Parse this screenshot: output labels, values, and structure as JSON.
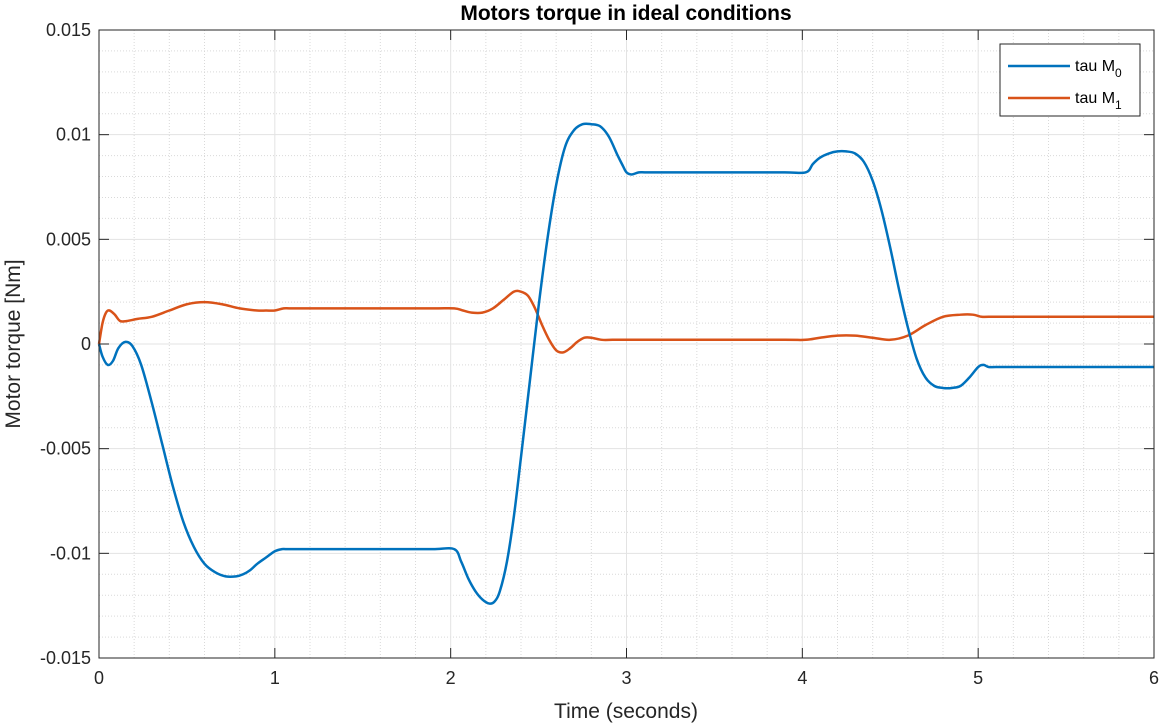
{
  "chart_data": {
    "type": "line",
    "title": "Motors torque in ideal conditions",
    "xlabel": "Time (seconds)",
    "ylabel": "Motor torque [Nm]",
    "xlim": [
      0,
      6
    ],
    "ylim": [
      -0.015,
      0.015
    ],
    "xticks": [
      0,
      1,
      2,
      3,
      4,
      5,
      6
    ],
    "xtick_labels": [
      "0",
      "1",
      "2",
      "3",
      "4",
      "5",
      "6"
    ],
    "yticks": [
      0.015,
      0.01,
      0.005,
      0,
      -0.005,
      -0.01,
      -0.015
    ],
    "ytick_labels": [
      "0.015",
      "0.01",
      "0.005",
      "0",
      "-0.005",
      "-0.01",
      "-0.015"
    ],
    "grid": true,
    "minor_grid": true,
    "legend_location": "top-right",
    "series": [
      {
        "name": "tau M",
        "subscript": "0",
        "color": "#0072BD",
        "x": [
          0,
          0.02,
          0.05,
          0.08,
          0.11,
          0.15,
          0.19,
          0.24,
          0.3,
          0.36,
          0.42,
          0.48,
          0.54,
          0.6,
          0.66,
          0.72,
          0.78,
          0.82,
          0.86,
          0.9,
          0.95,
          1.0,
          1.04,
          1.07,
          1.1,
          1.15,
          1.3,
          1.5,
          1.7,
          1.9,
          2.02,
          2.06,
          2.1,
          2.14,
          2.18,
          2.22,
          2.25,
          2.28,
          2.32,
          2.36,
          2.4,
          2.45,
          2.5,
          2.55,
          2.6,
          2.65,
          2.7,
          2.75,
          2.8,
          2.85,
          2.9,
          2.95,
          2.98,
          3.0,
          3.03,
          3.07,
          3.12,
          3.3,
          3.6,
          3.9,
          4.02,
          4.06,
          4.1,
          4.15,
          4.2,
          4.25,
          4.3,
          4.35,
          4.4,
          4.45,
          4.5,
          4.55,
          4.6,
          4.65,
          4.7,
          4.75,
          4.8,
          4.85,
          4.9,
          4.95,
          5.0,
          5.03,
          5.06,
          5.1,
          5.2,
          5.4,
          5.6,
          5.8,
          6.0
        ],
        "y": [
          0,
          -0.0006,
          -0.001,
          -0.0008,
          -0.0002,
          0.0001,
          -0.0001,
          -0.001,
          -0.0028,
          -0.0048,
          -0.0068,
          -0.0085,
          -0.0097,
          -0.0105,
          -0.0109,
          -0.0111,
          -0.0111,
          -0.011,
          -0.0108,
          -0.0105,
          -0.0102,
          -0.0099,
          -0.0098,
          -0.0098,
          -0.0098,
          -0.0098,
          -0.0098,
          -0.0098,
          -0.0098,
          -0.0098,
          -0.0098,
          -0.0104,
          -0.0112,
          -0.0118,
          -0.0122,
          -0.0124,
          -0.0123,
          -0.0118,
          -0.0104,
          -0.0082,
          -0.0054,
          -0.0018,
          0.0018,
          0.005,
          0.0076,
          0.0094,
          0.0102,
          0.0105,
          0.0105,
          0.0104,
          0.0099,
          0.009,
          0.0085,
          0.0082,
          0.0081,
          0.0082,
          0.0082,
          0.0082,
          0.0082,
          0.0082,
          0.0082,
          0.0086,
          0.0089,
          0.0091,
          0.0092,
          0.0092,
          0.0091,
          0.0087,
          0.0078,
          0.0064,
          0.0046,
          0.0026,
          0.0008,
          -0.0007,
          -0.0016,
          -0.002,
          -0.0021,
          -0.0021,
          -0.002,
          -0.0016,
          -0.0011,
          -0.001,
          -0.0011,
          -0.0011,
          -0.0011,
          -0.0011,
          -0.0011,
          -0.0011,
          -0.0011
        ]
      },
      {
        "name": "tau M",
        "subscript": "1",
        "color": "#D95319",
        "x": [
          0,
          0.02,
          0.04,
          0.06,
          0.09,
          0.12,
          0.16,
          0.22,
          0.3,
          0.4,
          0.5,
          0.6,
          0.7,
          0.8,
          0.9,
          0.95,
          1.0,
          1.05,
          1.1,
          1.3,
          1.6,
          1.9,
          2.02,
          2.07,
          2.12,
          2.18,
          2.24,
          2.3,
          2.36,
          2.4,
          2.44,
          2.48,
          2.52,
          2.56,
          2.6,
          2.64,
          2.68,
          2.72,
          2.76,
          2.8,
          2.86,
          2.92,
          2.98,
          3.02,
          3.06,
          3.1,
          3.5,
          3.9,
          4.02,
          4.1,
          4.2,
          4.3,
          4.4,
          4.5,
          4.6,
          4.7,
          4.8,
          4.9,
          4.97,
          5.02,
          5.06,
          5.2,
          5.5,
          5.8,
          6.0
        ],
        "y": [
          0,
          0.001,
          0.0015,
          0.0016,
          0.0014,
          0.0011,
          0.0011,
          0.0012,
          0.0013,
          0.0016,
          0.0019,
          0.002,
          0.0019,
          0.0017,
          0.0016,
          0.0016,
          0.0016,
          0.0017,
          0.0017,
          0.0017,
          0.0017,
          0.0017,
          0.0017,
          0.0016,
          0.0015,
          0.0015,
          0.0017,
          0.0021,
          0.0025,
          0.0025,
          0.0023,
          0.0017,
          0.0009,
          0.0002,
          -0.0003,
          -0.0004,
          -0.0002,
          0.0001,
          0.0003,
          0.0003,
          0.0002,
          0.0002,
          0.0002,
          0.0002,
          0.0002,
          0.0002,
          0.0002,
          0.0002,
          0.0002,
          0.0003,
          0.0004,
          0.0004,
          0.0003,
          0.0002,
          0.0004,
          0.0009,
          0.0013,
          0.0014,
          0.0014,
          0.0013,
          0.0013,
          0.0013,
          0.0013,
          0.0013,
          0.0013
        ]
      }
    ]
  }
}
